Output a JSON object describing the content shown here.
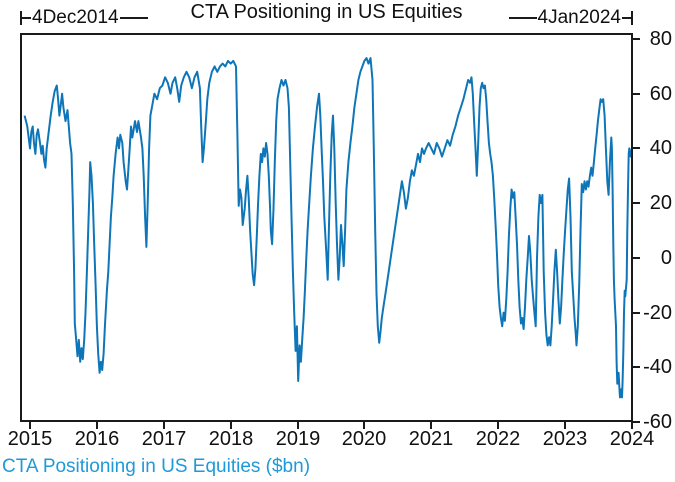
{
  "title": "CTA Positioning in US Equities",
  "caption": "CTA Positioning in US Equities ($bn)",
  "annotations": {
    "start_label": "4Dec2014",
    "end_label": "4Jan2024"
  },
  "colors": {
    "line": "#0e76b8",
    "caption": "#1f9ad8",
    "axis": "#1a1a1a",
    "text": "#111111"
  },
  "chart_data": {
    "type": "line",
    "title": "CTA Positioning in US Equities",
    "series_name": "CTA Positioning in US Equities ($bn)",
    "xlabel": "",
    "ylabel": "$bn",
    "x_start_label": "4Dec2014",
    "x_end_label": "4Jan2024",
    "ylim": [
      -60,
      80
    ],
    "xlim": [
      2014.85,
      2024.05
    ],
    "y_ticks": [
      80,
      60,
      40,
      20,
      0,
      -20,
      -40,
      -60
    ],
    "x_ticks": [
      2015,
      2016,
      2017,
      2018,
      2019,
      2020,
      2021,
      2022,
      2023,
      2024
    ],
    "grid": false,
    "legend_position": "bottom-left",
    "points": [
      [
        2014.92,
        52
      ],
      [
        2014.94,
        50
      ],
      [
        2014.96,
        48
      ],
      [
        2015.0,
        40
      ],
      [
        2015.02,
        46
      ],
      [
        2015.04,
        48
      ],
      [
        2015.06,
        42
      ],
      [
        2015.08,
        38
      ],
      [
        2015.1,
        45
      ],
      [
        2015.12,
        47
      ],
      [
        2015.15,
        42
      ],
      [
        2015.17,
        38
      ],
      [
        2015.19,
        41
      ],
      [
        2015.21,
        36
      ],
      [
        2015.23,
        33
      ],
      [
        2015.25,
        40
      ],
      [
        2015.28,
        46
      ],
      [
        2015.31,
        52
      ],
      [
        2015.34,
        57
      ],
      [
        2015.37,
        61
      ],
      [
        2015.4,
        63
      ],
      [
        2015.42,
        58
      ],
      [
        2015.44,
        52
      ],
      [
        2015.46,
        56
      ],
      [
        2015.48,
        60
      ],
      [
        2015.5,
        55
      ],
      [
        2015.53,
        50
      ],
      [
        2015.56,
        54
      ],
      [
        2015.58,
        48
      ],
      [
        2015.6,
        42
      ],
      [
        2015.62,
        38
      ],
      [
        2015.64,
        20
      ],
      [
        2015.66,
        -5
      ],
      [
        2015.67,
        -24
      ],
      [
        2015.69,
        -30
      ],
      [
        2015.71,
        -36
      ],
      [
        2015.73,
        -30
      ],
      [
        2015.75,
        -38
      ],
      [
        2015.77,
        -33
      ],
      [
        2015.79,
        -37
      ],
      [
        2015.81,
        -30
      ],
      [
        2015.83,
        -20
      ],
      [
        2015.85,
        -5
      ],
      [
        2015.87,
        10
      ],
      [
        2015.89,
        25
      ],
      [
        2015.9,
        35
      ],
      [
        2015.92,
        30
      ],
      [
        2015.94,
        20
      ],
      [
        2015.96,
        5
      ],
      [
        2015.98,
        -10
      ],
      [
        2016.0,
        -25
      ],
      [
        2016.02,
        -35
      ],
      [
        2016.04,
        -42
      ],
      [
        2016.06,
        -38
      ],
      [
        2016.08,
        -41
      ],
      [
        2016.1,
        -35
      ],
      [
        2016.12,
        -25
      ],
      [
        2016.15,
        -12
      ],
      [
        2016.17,
        -5
      ],
      [
        2016.19,
        5
      ],
      [
        2016.21,
        15
      ],
      [
        2016.23,
        22
      ],
      [
        2016.25,
        30
      ],
      [
        2016.28,
        38
      ],
      [
        2016.31,
        44
      ],
      [
        2016.33,
        40
      ],
      [
        2016.35,
        45
      ],
      [
        2016.38,
        42
      ],
      [
        2016.4,
        35
      ],
      [
        2016.43,
        28
      ],
      [
        2016.45,
        25
      ],
      [
        2016.47,
        32
      ],
      [
        2016.49,
        40
      ],
      [
        2016.51,
        48
      ],
      [
        2016.53,
        44
      ],
      [
        2016.55,
        47
      ],
      [
        2016.57,
        50
      ],
      [
        2016.6,
        46
      ],
      [
        2016.62,
        50
      ],
      [
        2016.64,
        47
      ],
      [
        2016.66,
        44
      ],
      [
        2016.68,
        40
      ],
      [
        2016.7,
        30
      ],
      [
        2016.72,
        15
      ],
      [
        2016.74,
        4
      ],
      [
        2016.76,
        20
      ],
      [
        2016.78,
        40
      ],
      [
        2016.8,
        52
      ],
      [
        2016.83,
        56
      ],
      [
        2016.86,
        60
      ],
      [
        2016.9,
        58
      ],
      [
        2016.94,
        62
      ],
      [
        2016.98,
        63
      ],
      [
        2017.02,
        66
      ],
      [
        2017.06,
        64
      ],
      [
        2017.1,
        60
      ],
      [
        2017.13,
        64
      ],
      [
        2017.17,
        66
      ],
      [
        2017.2,
        62
      ],
      [
        2017.23,
        57
      ],
      [
        2017.26,
        63
      ],
      [
        2017.3,
        66
      ],
      [
        2017.34,
        68
      ],
      [
        2017.38,
        66
      ],
      [
        2017.42,
        62
      ],
      [
        2017.46,
        66
      ],
      [
        2017.5,
        68
      ],
      [
        2017.54,
        62
      ],
      [
        2017.56,
        48
      ],
      [
        2017.58,
        35
      ],
      [
        2017.6,
        40
      ],
      [
        2017.63,
        50
      ],
      [
        2017.65,
        58
      ],
      [
        2017.68,
        64
      ],
      [
        2017.72,
        68
      ],
      [
        2017.76,
        70
      ],
      [
        2017.8,
        68
      ],
      [
        2017.84,
        70
      ],
      [
        2017.88,
        71
      ],
      [
        2017.92,
        70
      ],
      [
        2017.96,
        72
      ],
      [
        2018.0,
        71
      ],
      [
        2018.04,
        72
      ],
      [
        2018.08,
        70
      ],
      [
        2018.1,
        45
      ],
      [
        2018.12,
        19
      ],
      [
        2018.14,
        25
      ],
      [
        2018.16,
        22
      ],
      [
        2018.18,
        12
      ],
      [
        2018.21,
        18
      ],
      [
        2018.23,
        25
      ],
      [
        2018.25,
        30
      ],
      [
        2018.27,
        22
      ],
      [
        2018.29,
        10
      ],
      [
        2018.31,
        2
      ],
      [
        2018.33,
        -6
      ],
      [
        2018.35,
        -10
      ],
      [
        2018.37,
        -4
      ],
      [
        2018.39,
        8
      ],
      [
        2018.41,
        20
      ],
      [
        2018.43,
        30
      ],
      [
        2018.45,
        38
      ],
      [
        2018.47,
        35
      ],
      [
        2018.49,
        40
      ],
      [
        2018.51,
        37
      ],
      [
        2018.53,
        42
      ],
      [
        2018.55,
        38
      ],
      [
        2018.57,
        30
      ],
      [
        2018.59,
        18
      ],
      [
        2018.6,
        10
      ],
      [
        2018.62,
        5
      ],
      [
        2018.64,
        18
      ],
      [
        2018.66,
        35
      ],
      [
        2018.68,
        50
      ],
      [
        2018.7,
        58
      ],
      [
        2018.73,
        62
      ],
      [
        2018.76,
        65
      ],
      [
        2018.79,
        63
      ],
      [
        2018.82,
        65
      ],
      [
        2018.85,
        62
      ],
      [
        2018.87,
        55
      ],
      [
        2018.89,
        35
      ],
      [
        2018.91,
        15
      ],
      [
        2018.93,
        -5
      ],
      [
        2018.95,
        -20
      ],
      [
        2018.97,
        -34
      ],
      [
        2018.99,
        -25
      ],
      [
        2019.01,
        -45
      ],
      [
        2019.03,
        -32
      ],
      [
        2019.05,
        -38
      ],
      [
        2019.07,
        -30
      ],
      [
        2019.09,
        -22
      ],
      [
        2019.11,
        -12
      ],
      [
        2019.13,
        0
      ],
      [
        2019.15,
        10
      ],
      [
        2019.17,
        18
      ],
      [
        2019.2,
        30
      ],
      [
        2019.23,
        40
      ],
      [
        2019.26,
        48
      ],
      [
        2019.29,
        55
      ],
      [
        2019.32,
        60
      ],
      [
        2019.34,
        52
      ],
      [
        2019.36,
        40
      ],
      [
        2019.38,
        28
      ],
      [
        2019.4,
        15
      ],
      [
        2019.43,
        2
      ],
      [
        2019.45,
        -8
      ],
      [
        2019.47,
        12
      ],
      [
        2019.49,
        30
      ],
      [
        2019.51,
        45
      ],
      [
        2019.53,
        52
      ],
      [
        2019.55,
        40
      ],
      [
        2019.57,
        20
      ],
      [
        2019.59,
        5
      ],
      [
        2019.61,
        -8
      ],
      [
        2019.63,
        0
      ],
      [
        2019.65,
        12
      ],
      [
        2019.67,
        5
      ],
      [
        2019.69,
        -3
      ],
      [
        2019.71,
        10
      ],
      [
        2019.73,
        25
      ],
      [
        2019.76,
        35
      ],
      [
        2019.79,
        42
      ],
      [
        2019.82,
        48
      ],
      [
        2019.85,
        55
      ],
      [
        2019.88,
        60
      ],
      [
        2019.91,
        65
      ],
      [
        2019.94,
        68
      ],
      [
        2019.97,
        70
      ],
      [
        2020.0,
        72
      ],
      [
        2020.03,
        73
      ],
      [
        2020.06,
        71
      ],
      [
        2020.09,
        73
      ],
      [
        2020.12,
        65
      ],
      [
        2020.14,
        40
      ],
      [
        2020.16,
        10
      ],
      [
        2020.18,
        -13
      ],
      [
        2020.2,
        -25
      ],
      [
        2020.22,
        -31
      ],
      [
        2020.24,
        -27
      ],
      [
        2020.26,
        -22
      ],
      [
        2020.29,
        -17
      ],
      [
        2020.32,
        -12
      ],
      [
        2020.35,
        -7
      ],
      [
        2020.38,
        -2
      ],
      [
        2020.41,
        3
      ],
      [
        2020.44,
        8
      ],
      [
        2020.47,
        13
      ],
      [
        2020.5,
        18
      ],
      [
        2020.53,
        23
      ],
      [
        2020.56,
        28
      ],
      [
        2020.59,
        24
      ],
      [
        2020.62,
        18
      ],
      [
        2020.65,
        22
      ],
      [
        2020.68,
        28
      ],
      [
        2020.71,
        32
      ],
      [
        2020.74,
        30
      ],
      [
        2020.77,
        34
      ],
      [
        2020.8,
        38
      ],
      [
        2020.83,
        35
      ],
      [
        2020.86,
        40
      ],
      [
        2020.89,
        38
      ],
      [
        2020.92,
        40
      ],
      [
        2020.96,
        42
      ],
      [
        2021.0,
        40
      ],
      [
        2021.04,
        38
      ],
      [
        2021.08,
        42
      ],
      [
        2021.12,
        40
      ],
      [
        2021.16,
        37
      ],
      [
        2021.2,
        40
      ],
      [
        2021.24,
        43
      ],
      [
        2021.28,
        41
      ],
      [
        2021.32,
        45
      ],
      [
        2021.36,
        48
      ],
      [
        2021.4,
        52
      ],
      [
        2021.44,
        55
      ],
      [
        2021.48,
        58
      ],
      [
        2021.52,
        62
      ],
      [
        2021.55,
        65
      ],
      [
        2021.58,
        64
      ],
      [
        2021.6,
        66
      ],
      [
        2021.62,
        60
      ],
      [
        2021.64,
        50
      ],
      [
        2021.66,
        40
      ],
      [
        2021.68,
        30
      ],
      [
        2021.7,
        42
      ],
      [
        2021.72,
        55
      ],
      [
        2021.74,
        62
      ],
      [
        2021.76,
        64
      ],
      [
        2021.78,
        62
      ],
      [
        2021.8,
        63
      ],
      [
        2021.82,
        58
      ],
      [
        2021.84,
        50
      ],
      [
        2021.86,
        42
      ],
      [
        2021.88,
        38
      ],
      [
        2021.9,
        35
      ],
      [
        2021.92,
        30
      ],
      [
        2021.94,
        22
      ],
      [
        2021.96,
        12
      ],
      [
        2021.98,
        2
      ],
      [
        2022.0,
        -10
      ],
      [
        2022.02,
        -18
      ],
      [
        2022.04,
        -22
      ],
      [
        2022.06,
        -25
      ],
      [
        2022.08,
        -20
      ],
      [
        2022.1,
        -23
      ],
      [
        2022.12,
        -15
      ],
      [
        2022.14,
        -5
      ],
      [
        2022.16,
        8
      ],
      [
        2022.18,
        18
      ],
      [
        2022.2,
        25
      ],
      [
        2022.22,
        22
      ],
      [
        2022.24,
        24
      ],
      [
        2022.26,
        15
      ],
      [
        2022.28,
        5
      ],
      [
        2022.3,
        -8
      ],
      [
        2022.32,
        -18
      ],
      [
        2022.34,
        -24
      ],
      [
        2022.36,
        -22
      ],
      [
        2022.38,
        -26
      ],
      [
        2022.4,
        -18
      ],
      [
        2022.42,
        -8
      ],
      [
        2022.44,
        0
      ],
      [
        2022.46,
        8
      ],
      [
        2022.48,
        2
      ],
      [
        2022.5,
        -8
      ],
      [
        2022.52,
        -14
      ],
      [
        2022.54,
        -20
      ],
      [
        2022.56,
        -25
      ],
      [
        2022.57,
        -12
      ],
      [
        2022.58,
        0
      ],
      [
        2022.6,
        15
      ],
      [
        2022.62,
        23
      ],
      [
        2022.64,
        20
      ],
      [
        2022.66,
        23
      ],
      [
        2022.67,
        10
      ],
      [
        2022.68,
        -5
      ],
      [
        2022.7,
        -20
      ],
      [
        2022.72,
        -28
      ],
      [
        2022.74,
        -32
      ],
      [
        2022.76,
        -29
      ],
      [
        2022.78,
        -32
      ],
      [
        2022.8,
        -25
      ],
      [
        2022.82,
        -15
      ],
      [
        2022.84,
        -5
      ],
      [
        2022.86,
        3
      ],
      [
        2022.88,
        -5
      ],
      [
        2022.9,
        -15
      ],
      [
        2022.92,
        -24
      ],
      [
        2022.94,
        -18
      ],
      [
        2022.96,
        -8
      ],
      [
        2022.98,
        2
      ],
      [
        2023.0,
        10
      ],
      [
        2023.02,
        18
      ],
      [
        2023.04,
        25
      ],
      [
        2023.06,
        29
      ],
      [
        2023.08,
        15
      ],
      [
        2023.1,
        -5
      ],
      [
        2023.12,
        -13
      ],
      [
        2023.14,
        -22
      ],
      [
        2023.16,
        -28
      ],
      [
        2023.17,
        -32
      ],
      [
        2023.19,
        -25
      ],
      [
        2023.21,
        -10
      ],
      [
        2023.23,
        10
      ],
      [
        2023.25,
        27
      ],
      [
        2023.27,
        24
      ],
      [
        2023.29,
        28
      ],
      [
        2023.31,
        25
      ],
      [
        2023.33,
        28
      ],
      [
        2023.35,
        26
      ],
      [
        2023.37,
        30
      ],
      [
        2023.39,
        33
      ],
      [
        2023.41,
        30
      ],
      [
        2023.43,
        35
      ],
      [
        2023.45,
        40
      ],
      [
        2023.47,
        45
      ],
      [
        2023.49,
        50
      ],
      [
        2023.51,
        54
      ],
      [
        2023.53,
        58
      ],
      [
        2023.55,
        57
      ],
      [
        2023.57,
        58
      ],
      [
        2023.59,
        52
      ],
      [
        2023.61,
        40
      ],
      [
        2023.63,
        28
      ],
      [
        2023.65,
        23
      ],
      [
        2023.67,
        35
      ],
      [
        2023.69,
        44
      ],
      [
        2023.7,
        40
      ],
      [
        2023.71,
        25
      ],
      [
        2023.72,
        5
      ],
      [
        2023.73,
        -8
      ],
      [
        2023.74,
        -15
      ],
      [
        2023.76,
        -25
      ],
      [
        2023.77,
        -38
      ],
      [
        2023.78,
        -46
      ],
      [
        2023.8,
        -42
      ],
      [
        2023.81,
        -47
      ],
      [
        2023.82,
        -51
      ],
      [
        2023.84,
        -48
      ],
      [
        2023.85,
        -51
      ],
      [
        2023.86,
        -45
      ],
      [
        2023.87,
        -35
      ],
      [
        2023.88,
        -20
      ],
      [
        2023.89,
        -12
      ],
      [
        2023.9,
        -14
      ],
      [
        2023.92,
        -8
      ],
      [
        2023.93,
        10
      ],
      [
        2023.94,
        25
      ],
      [
        2023.95,
        38
      ],
      [
        2023.96,
        40
      ],
      [
        2023.98,
        37
      ],
      [
        2024.0,
        40
      ],
      [
        2024.01,
        40
      ]
    ]
  }
}
